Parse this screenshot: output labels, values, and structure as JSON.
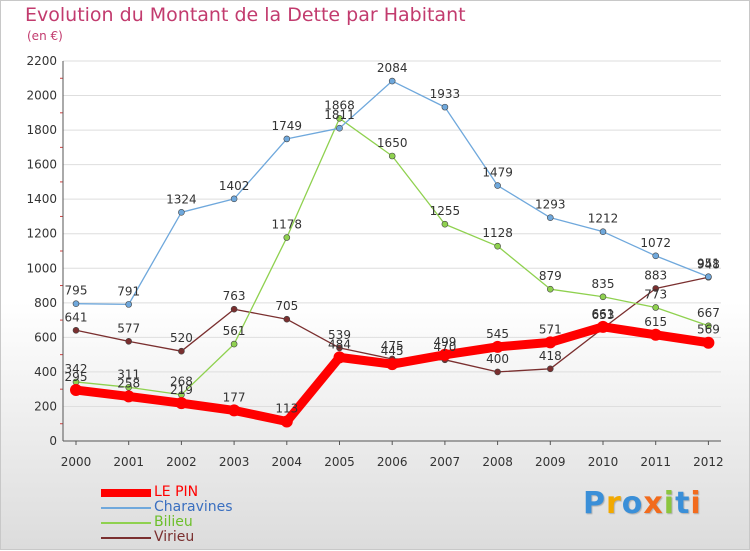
{
  "chart_data": {
    "type": "line",
    "title": "Evolution du Montant de la Dette par Habitant",
    "subtitle": "(en €)",
    "x": [
      "2000",
      "2001",
      "2002",
      "2003",
      "2004",
      "2005",
      "2006",
      "2007",
      "2008",
      "2009",
      "2010",
      "2011",
      "2012"
    ],
    "ylim": [
      0,
      2200
    ],
    "yticks": [
      0,
      200,
      400,
      600,
      800,
      1000,
      1200,
      1400,
      1600,
      1800,
      2000,
      2200
    ],
    "grid": "horizontal",
    "legend": "bottom-left",
    "series": [
      {
        "name": "LE PIN",
        "color": "#ff0000",
        "values": [
          295,
          258,
          219,
          177,
          113,
          484,
          445,
          499,
          545,
          571,
          661,
          615,
          569
        ]
      },
      {
        "name": "Charavines",
        "color": "#6fa8dc",
        "values": [
          795,
          791,
          1324,
          1402,
          1749,
          1811,
          2084,
          1933,
          1479,
          1293,
          1212,
          1072,
          951
        ]
      },
      {
        "name": "Bilieu",
        "color": "#8fd14f",
        "values": [
          342,
          311,
          268,
          561,
          1178,
          1868,
          1650,
          1255,
          1128,
          879,
          835,
          773,
          667
        ]
      },
      {
        "name": "Virieu",
        "color": "#7a2f2f",
        "values": [
          641,
          577,
          520,
          763,
          705,
          539,
          475,
          470,
          400,
          418,
          653,
          883,
          948
        ]
      }
    ]
  },
  "logo_text": "Proxiti"
}
